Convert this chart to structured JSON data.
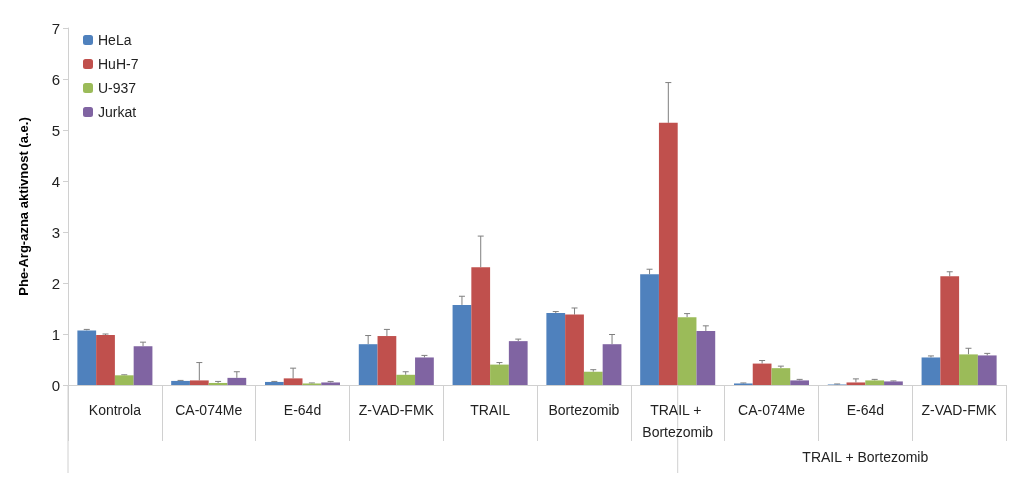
{
  "chart_data": {
    "type": "bar",
    "ylabel": "Phe-Arg-azna aktivnost (a.e.)",
    "categories": [
      "Kontrola",
      "CA-074Me",
      "E-64d",
      "Z-VAD-FMK",
      "TRAIL",
      "Bortezomib",
      "TRAIL + Bortezomib",
      "CA-074Me",
      "E-64d",
      "Z-VAD-FMK"
    ],
    "annotations": [
      "TRAIL + Bortezomib"
    ],
    "series": [
      {
        "name": "HeLa",
        "color": "#4f81bd",
        "values": [
          1.07,
          0.08,
          0.06,
          0.8,
          1.57,
          1.41,
          2.17,
          0.03,
          0.01,
          0.54
        ],
        "errors": [
          [
            1.07,
            1.09
          ],
          [
            0.08,
            0.09
          ],
          [
            0.06,
            0.07
          ],
          [
            0.8,
            0.97
          ],
          [
            1.57,
            1.74
          ],
          [
            1.41,
            1.44
          ],
          [
            2.17,
            2.27
          ],
          [
            0.03,
            0.04
          ],
          [
            0.01,
            0.02
          ],
          [
            0.54,
            0.57
          ]
        ]
      },
      {
        "name": "HuH-7",
        "color": "#c0504d",
        "values": [
          0.98,
          0.09,
          0.13,
          0.96,
          2.31,
          1.38,
          5.14,
          0.42,
          0.05,
          2.13
        ],
        "errors": [
          [
            0.98,
            1.0
          ],
          [
            0.09,
            0.44
          ],
          [
            0.13,
            0.33
          ],
          [
            0.96,
            1.09
          ],
          [
            2.31,
            2.92
          ],
          [
            1.38,
            1.51
          ],
          [
            5.14,
            5.93
          ],
          [
            0.42,
            0.48
          ],
          [
            0.05,
            0.12
          ],
          [
            2.13,
            2.22
          ]
        ]
      },
      {
        "name": "U-937",
        "color": "#9bbb59",
        "values": [
          0.19,
          0.04,
          0.03,
          0.2,
          0.4,
          0.26,
          1.33,
          0.33,
          0.09,
          0.6
        ],
        "errors": [
          [
            0.19,
            0.2
          ],
          [
            0.04,
            0.07
          ],
          [
            0.03,
            0.04
          ],
          [
            0.2,
            0.26
          ],
          [
            0.4,
            0.44
          ],
          [
            0.26,
            0.3
          ],
          [
            1.33,
            1.4
          ],
          [
            0.33,
            0.37
          ],
          [
            0.09,
            0.11
          ],
          [
            0.6,
            0.72
          ]
        ]
      },
      {
        "name": "Jurkat",
        "color": "#8064a2",
        "values": [
          0.76,
          0.14,
          0.05,
          0.54,
          0.86,
          0.8,
          1.06,
          0.09,
          0.07,
          0.58
        ],
        "errors": [
          [
            0.76,
            0.84
          ],
          [
            0.14,
            0.26
          ],
          [
            0.05,
            0.07
          ],
          [
            0.54,
            0.58
          ],
          [
            0.86,
            0.9
          ],
          [
            0.8,
            0.99
          ],
          [
            1.06,
            1.16
          ],
          [
            0.09,
            0.11
          ],
          [
            0.07,
            0.08
          ],
          [
            0.58,
            0.62
          ]
        ]
      }
    ],
    "ylim": [
      0,
      7
    ],
    "yticks": [
      0,
      1,
      2,
      3,
      4,
      5,
      6,
      7
    ],
    "grid": false,
    "legend": "top left"
  }
}
